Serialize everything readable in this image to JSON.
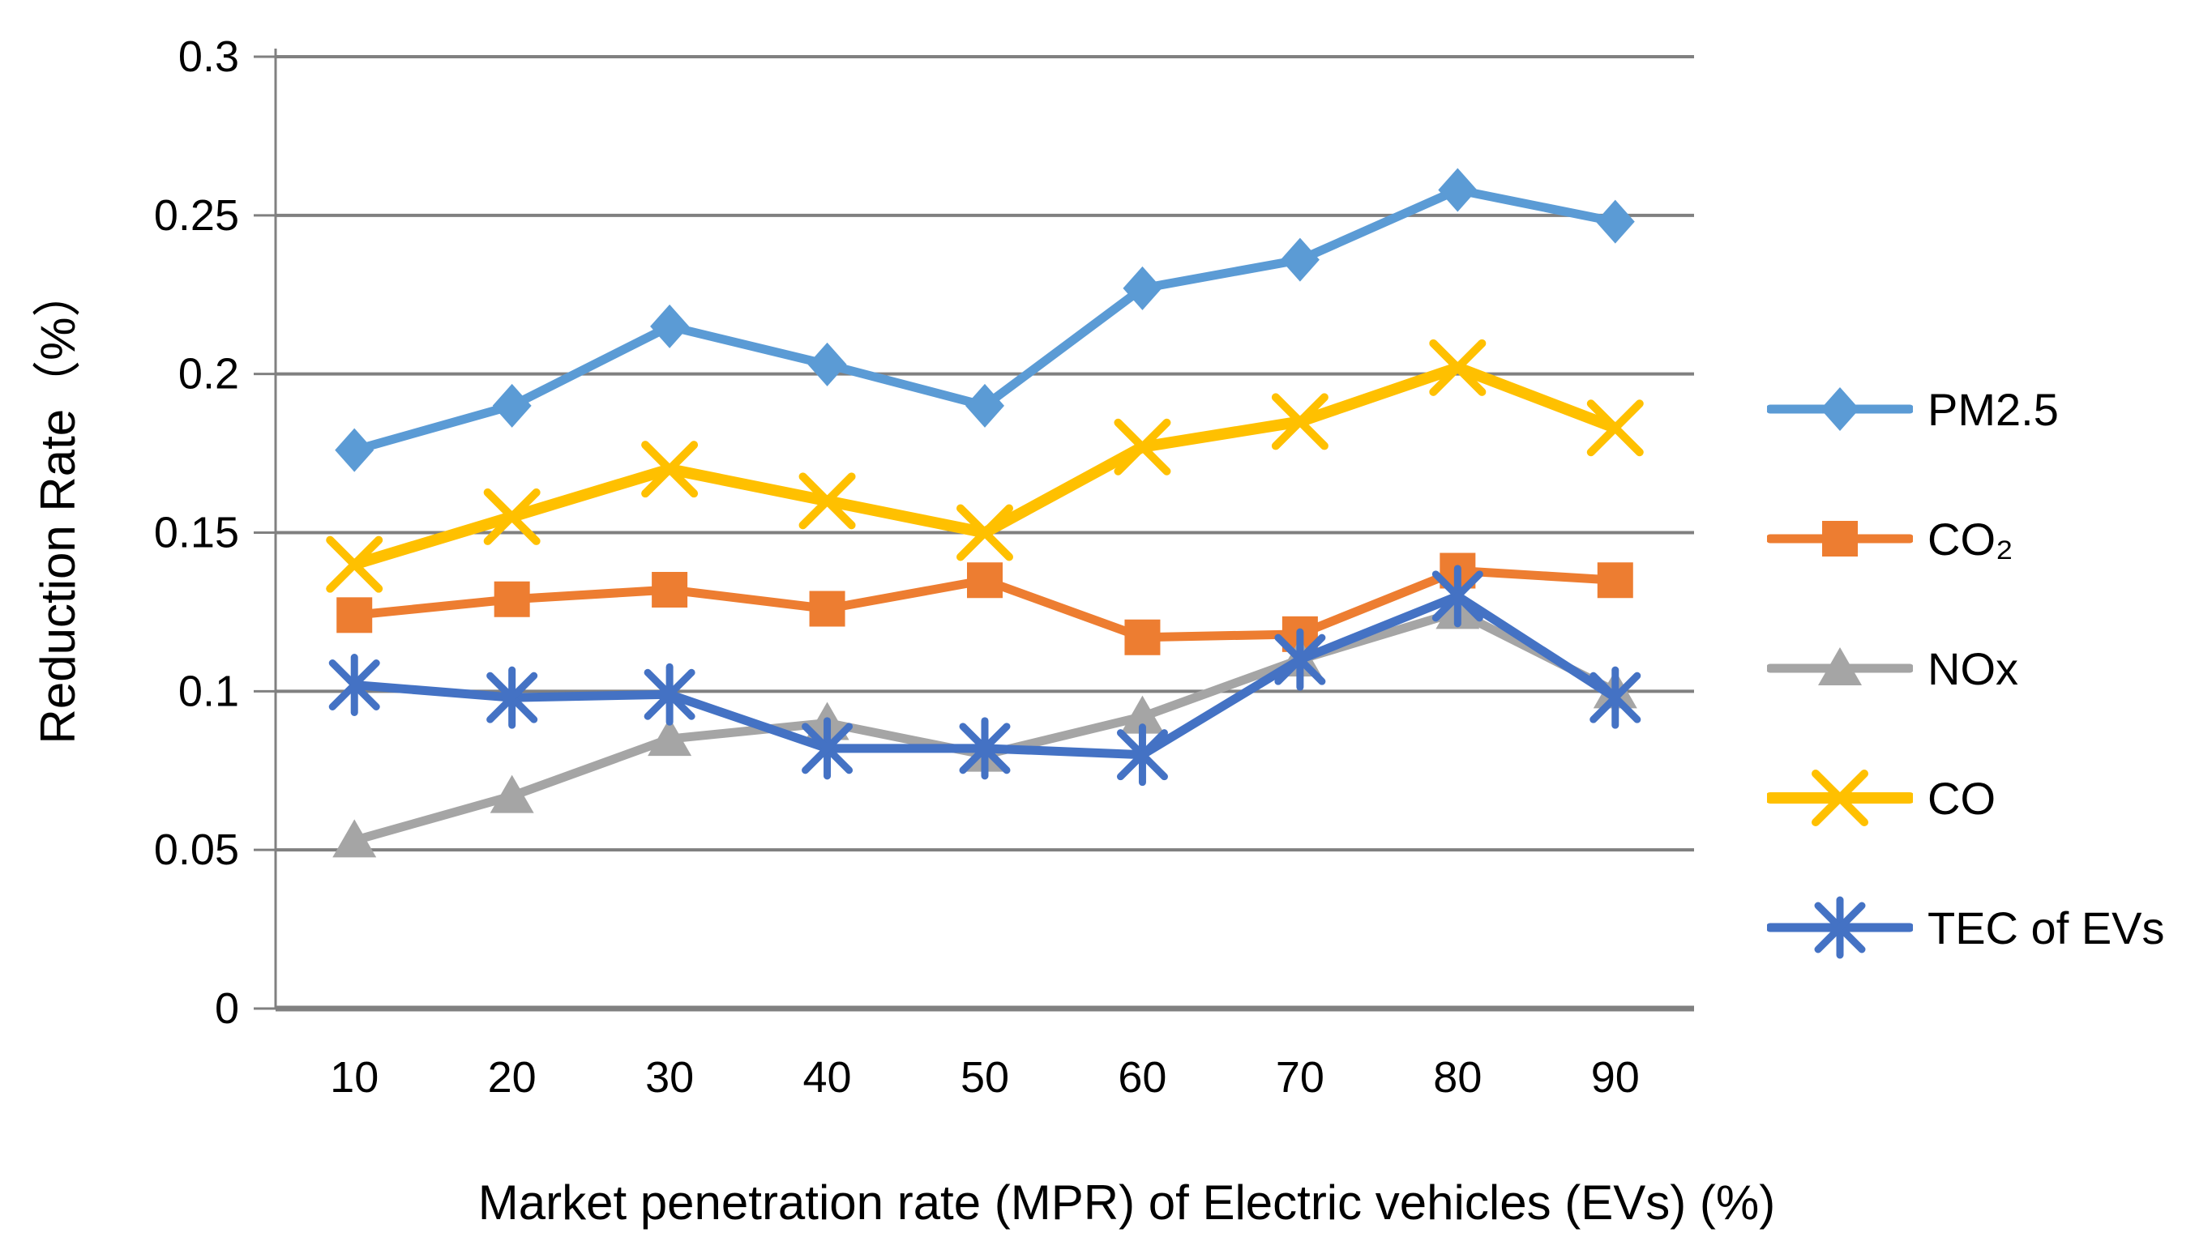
{
  "chart_data": {
    "type": "line",
    "title": "",
    "xlabel": "Market penetration rate (MPR) of Electric vehicles (EVs) (%)",
    "ylabel": "Reduction Rate（%）",
    "categories": [
      "10",
      "20",
      "30",
      "40",
      "50",
      "60",
      "70",
      "80",
      "90"
    ],
    "ylim": [
      0,
      0.3
    ],
    "ytick_step": 0.05,
    "ytick_labels": [
      "0",
      "0.05",
      "0.1",
      "0.15",
      "0.2",
      "0.25",
      "0.3"
    ],
    "grid": true,
    "legend_position": "right",
    "axis_color": "#808080",
    "text_color": "#000000",
    "background": "#ffffff",
    "series": [
      {
        "name": "PM2.5",
        "color": "#5B9BD5",
        "marker": "diamond",
        "values": [
          0.176,
          0.19,
          0.215,
          0.203,
          0.19,
          0.227,
          0.236,
          0.258,
          0.248
        ]
      },
      {
        "name": "CO₂",
        "color": "#ED7D31",
        "marker": "square",
        "values": [
          0.124,
          0.129,
          0.132,
          0.126,
          0.135,
          0.117,
          0.118,
          0.138,
          0.135
        ]
      },
      {
        "name": "NOx",
        "color": "#A5A5A5",
        "marker": "triangle",
        "values": [
          0.053,
          0.067,
          0.085,
          0.09,
          0.08,
          0.092,
          0.11,
          0.125,
          0.1
        ]
      },
      {
        "name": "CO",
        "color": "#FFC000",
        "marker": "x",
        "values": [
          0.14,
          0.155,
          0.17,
          0.16,
          0.15,
          0.177,
          0.185,
          0.202,
          0.183
        ]
      },
      {
        "name": "TEC of EVs",
        "color": "#4472C4",
        "marker": "star",
        "values": [
          0.102,
          0.098,
          0.099,
          0.082,
          0.082,
          0.08,
          0.11,
          0.13,
          0.098
        ]
      }
    ]
  }
}
